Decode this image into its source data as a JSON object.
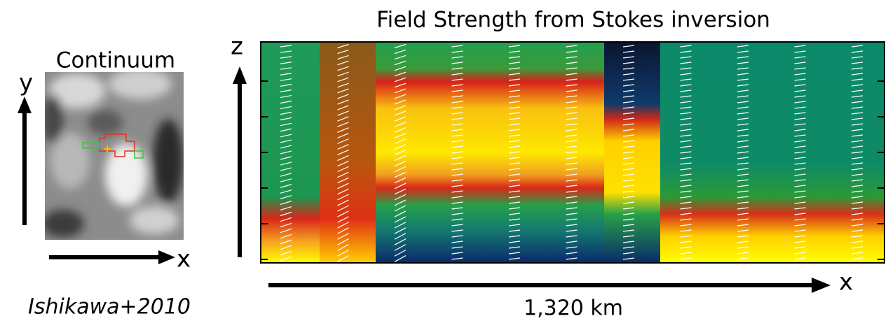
{
  "left_panel": {
    "title": "Continuum",
    "y_axis": "y",
    "x_axis": "x"
  },
  "right_panel": {
    "title": "Field Strength from Stokes inversion",
    "z_axis": "z",
    "x_axis": "x",
    "scale": "1,320 km"
  },
  "citation": "Ishikawa+2010"
}
